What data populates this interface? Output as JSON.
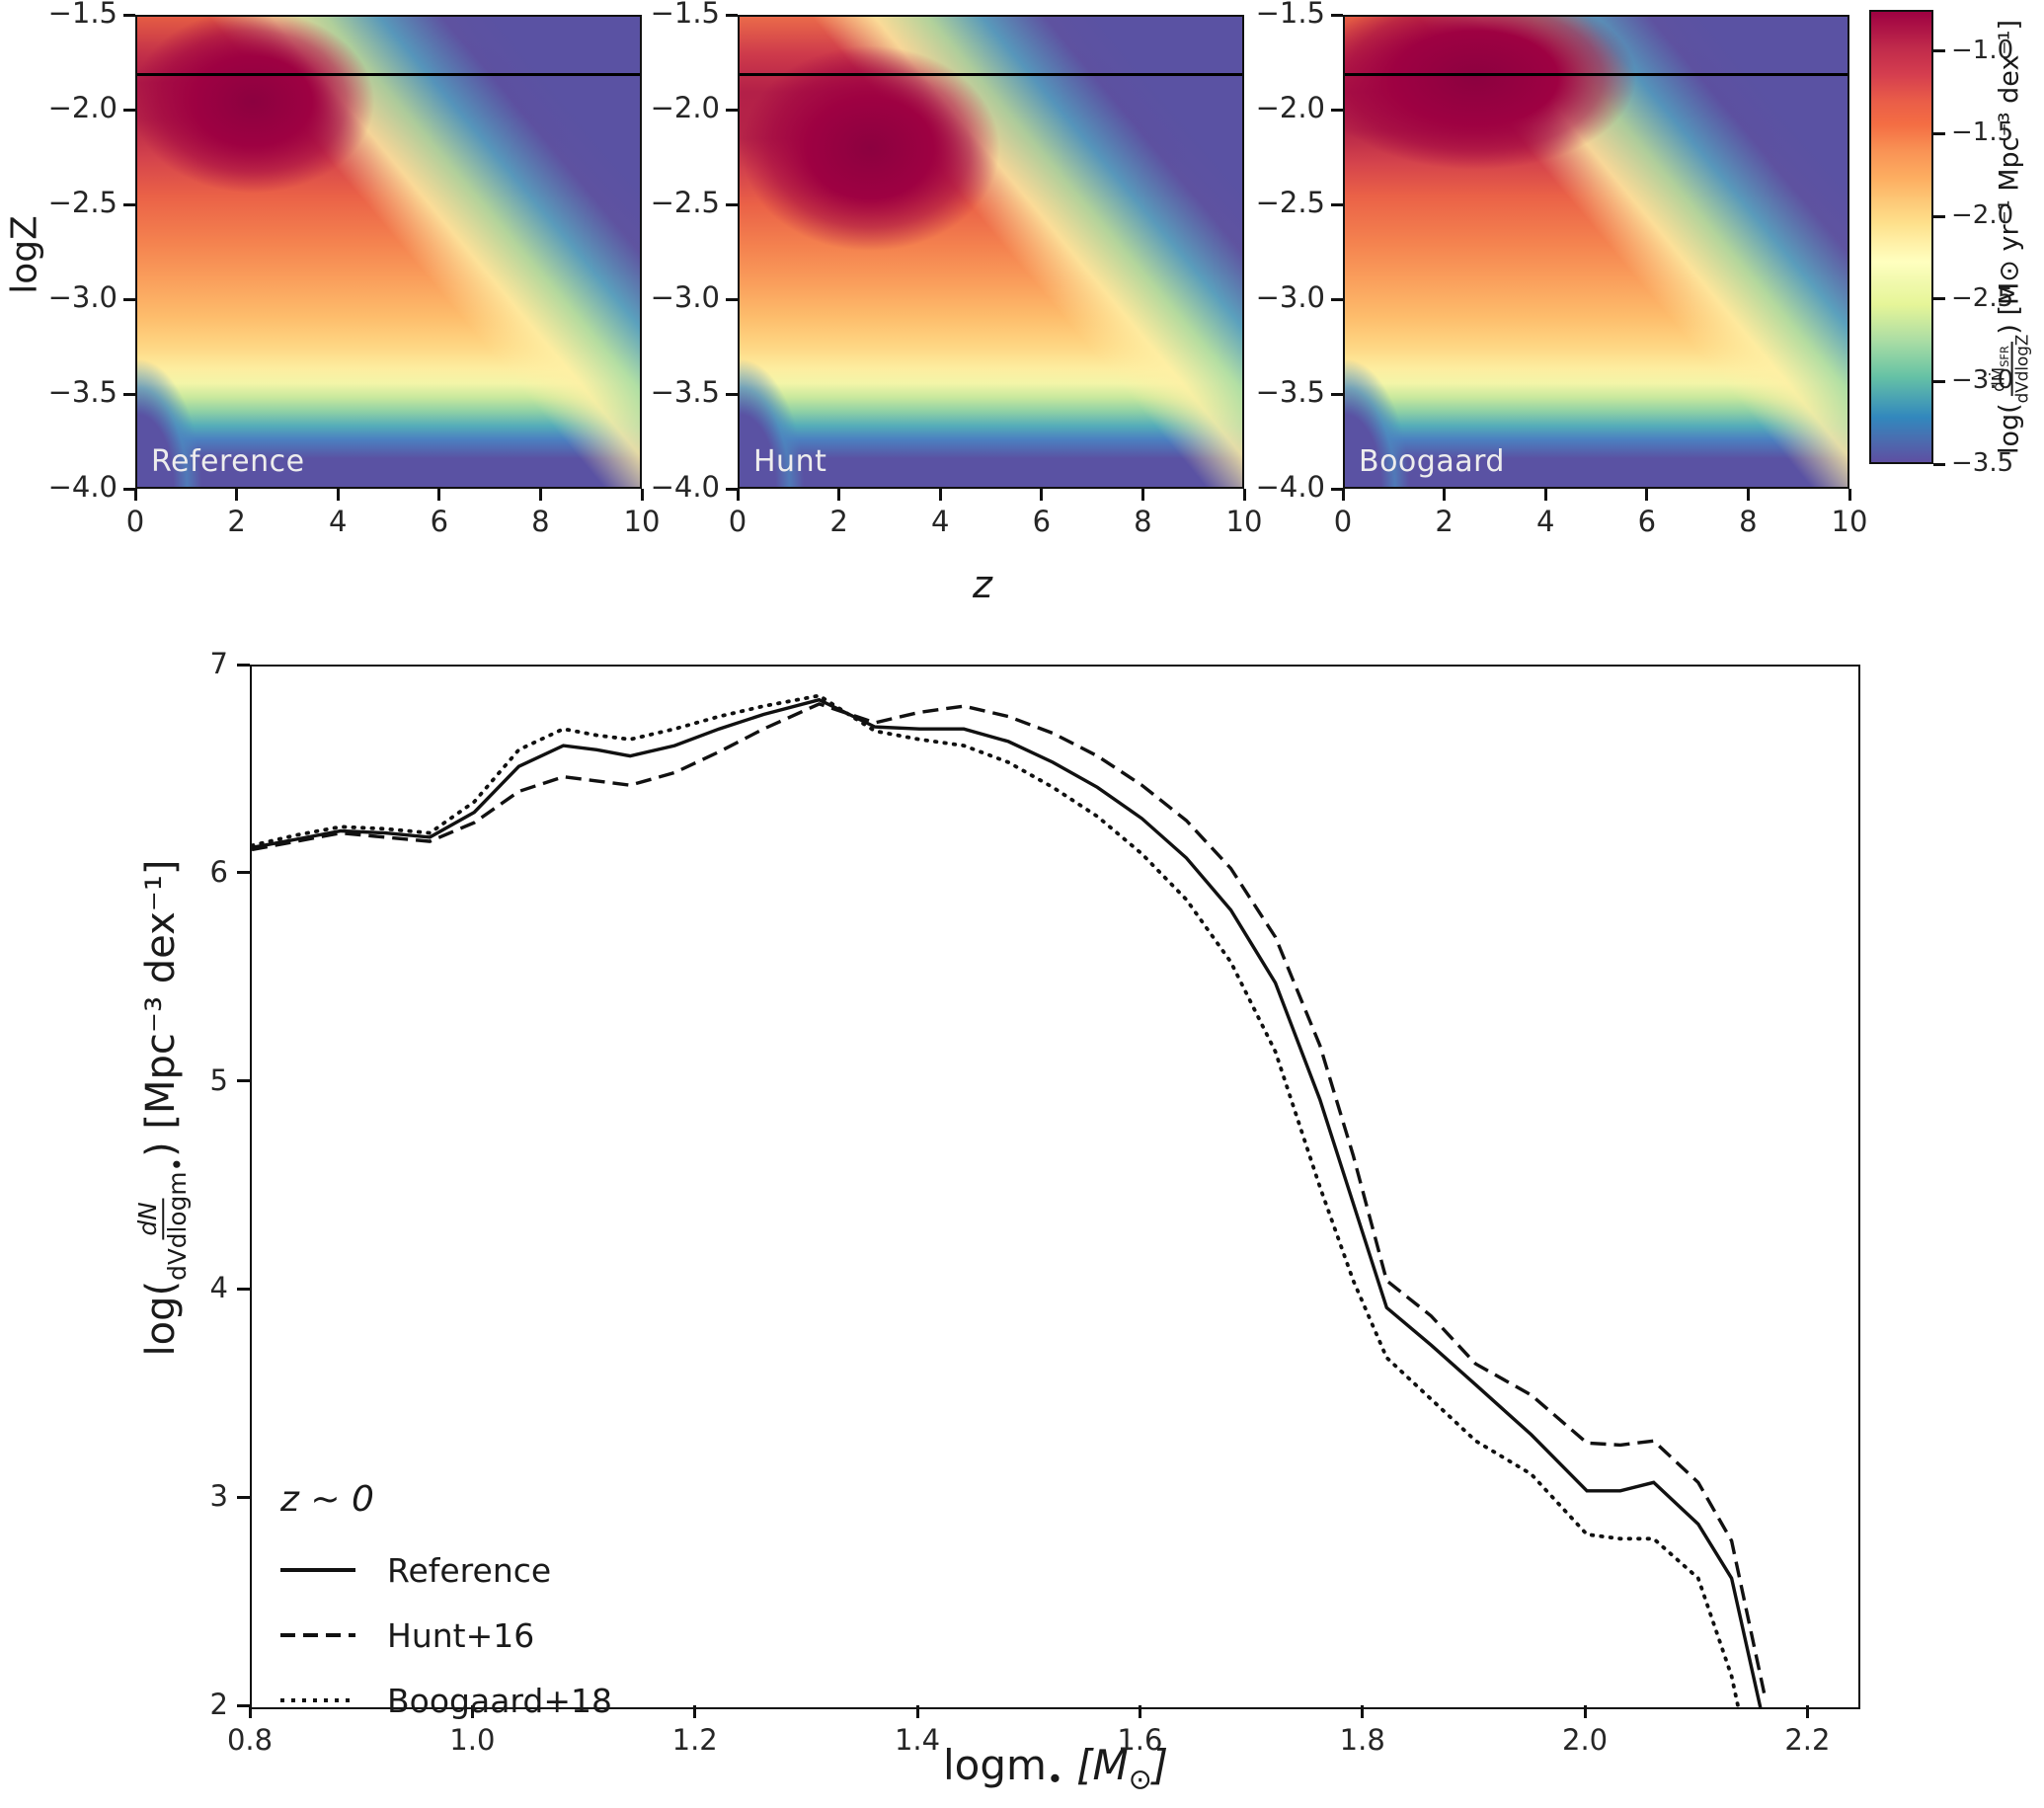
{
  "chart_data": [
    {
      "type": "heatmap",
      "description": "Three star-formation-rate density maps in the z-logZ plane sharing one colorbar",
      "panels": [
        {
          "label": "Reference",
          "peak_region": {
            "z": 2.5,
            "logZ": -2.0
          }
        },
        {
          "label": "Hunt",
          "peak_region": {
            "z": 2.7,
            "logZ": -2.3
          }
        },
        {
          "label": "Boogaard",
          "peak_region": {
            "z": 2.5,
            "logZ": -1.9
          }
        }
      ],
      "xlabel": "z",
      "ylabel": "logZ",
      "xlim": [
        0,
        10
      ],
      "ylim": [
        -4.0,
        -1.5
      ],
      "xticks": [
        {
          "v": 0,
          "label": "0"
        },
        {
          "v": 2,
          "label": "2"
        },
        {
          "v": 4,
          "label": "4"
        },
        {
          "v": 6,
          "label": "6"
        },
        {
          "v": 8,
          "label": "8"
        },
        {
          "v": 10,
          "label": "10"
        }
      ],
      "yticks": [
        {
          "v": -1.5,
          "label": "−1.5"
        },
        {
          "v": -2.0,
          "label": "−2.0"
        },
        {
          "v": -2.5,
          "label": "−2.5"
        },
        {
          "v": -3.0,
          "label": "−3.0"
        },
        {
          "v": -3.5,
          "label": "−3.5"
        },
        {
          "v": -4.0,
          "label": "−4.0"
        }
      ],
      "horizontal_line_logZ": -1.8,
      "colorbar": {
        "range_top": -0.75,
        "range_bottom": -3.5,
        "ticks": [
          {
            "v": -1.0,
            "label": "−1.0"
          },
          {
            "v": -1.5,
            "label": "−1.5"
          },
          {
            "v": -2.0,
            "label": "−2.0"
          },
          {
            "v": -2.5,
            "label": "−2.5"
          },
          {
            "v": -3.0,
            "label": "−3.0"
          },
          {
            "v": -3.5,
            "label": "−3.5"
          }
        ],
        "label": {
          "prefix": "log(",
          "num_main": "dṀ",
          "num_sub": "SFR",
          "den": "dVdlogZ",
          "suffix": ") [M⊙ yr⁻¹ Mpc⁻³ dex⁻¹]"
        },
        "colormap": "Spectral reversed",
        "colors": {
          "max": "#9e0142",
          "mid": "#ffffbf",
          "min": "#5e4fa2"
        }
      }
    },
    {
      "type": "line",
      "xlabel_parts": {
        "main": "logm",
        "sub": "•",
        "unit_pre": " [M",
        "unit_sub": "⊙",
        "unit_post": "]"
      },
      "ylabel_parts": {
        "prefix": "log(",
        "num": "dN",
        "den": "dVdlogm•",
        "suffix": ") [Mpc⁻³ dex⁻¹]"
      },
      "xlim": [
        0.8,
        2.244
      ],
      "ylim": [
        2,
        7
      ],
      "xticks": [
        {
          "v": 0.8,
          "label": "0.8"
        },
        {
          "v": 1.0,
          "label": "1.0"
        },
        {
          "v": 1.2,
          "label": "1.2"
        },
        {
          "v": 1.4,
          "label": "1.4"
        },
        {
          "v": 1.6,
          "label": "1.6"
        },
        {
          "v": 1.8,
          "label": "1.8"
        },
        {
          "v": 2.0,
          "label": "2.0"
        },
        {
          "v": 2.2,
          "label": "2.2"
        }
      ],
      "yticks": [
        {
          "v": 7,
          "label": "7"
        },
        {
          "v": 6,
          "label": "6"
        },
        {
          "v": 5,
          "label": "5"
        },
        {
          "v": 4,
          "label": "4"
        },
        {
          "v": 3,
          "label": "3"
        },
        {
          "v": 2,
          "label": "2"
        }
      ],
      "legend_title": "z ~ 0",
      "legend_position": "lower left",
      "line_color": "#111111",
      "x": [
        0.8,
        0.84,
        0.88,
        0.92,
        0.96,
        1.0,
        1.04,
        1.08,
        1.11,
        1.14,
        1.18,
        1.22,
        1.26,
        1.31,
        1.36,
        1.4,
        1.44,
        1.48,
        1.52,
        1.56,
        1.6,
        1.64,
        1.68,
        1.72,
        1.76,
        1.79,
        1.82,
        1.86,
        1.9,
        1.95,
        2.0,
        2.03,
        2.06,
        2.1,
        2.13,
        2.16
      ],
      "series": [
        {
          "name": "Reference",
          "style": "solid",
          "y": [
            6.13,
            6.17,
            6.21,
            6.2,
            6.18,
            6.3,
            6.52,
            6.62,
            6.6,
            6.57,
            6.62,
            6.7,
            6.77,
            6.84,
            6.71,
            6.7,
            6.7,
            6.64,
            6.54,
            6.42,
            6.27,
            6.08,
            5.83,
            5.48,
            4.92,
            4.42,
            3.92,
            3.74,
            3.55,
            3.31,
            3.04,
            3.04,
            3.08,
            2.88,
            2.62,
            1.9
          ]
        },
        {
          "name": "Hunt+16",
          "style": "dashed",
          "y": [
            6.12,
            6.16,
            6.2,
            6.18,
            6.16,
            6.25,
            6.4,
            6.47,
            6.45,
            6.43,
            6.49,
            6.59,
            6.7,
            6.82,
            6.73,
            6.78,
            6.81,
            6.76,
            6.68,
            6.57,
            6.43,
            6.26,
            6.03,
            5.7,
            5.18,
            4.65,
            4.05,
            3.88,
            3.65,
            3.5,
            3.27,
            3.26,
            3.28,
            3.08,
            2.8,
            2.05
          ]
        },
        {
          "name": "Boogaard+18",
          "style": "dotted",
          "y": [
            6.14,
            6.19,
            6.23,
            6.22,
            6.2,
            6.35,
            6.6,
            6.7,
            6.67,
            6.65,
            6.7,
            6.76,
            6.81,
            6.86,
            6.69,
            6.65,
            6.62,
            6.54,
            6.42,
            6.28,
            6.1,
            5.88,
            5.58,
            5.15,
            4.5,
            4.05,
            3.68,
            3.48,
            3.28,
            3.12,
            2.83,
            2.81,
            2.81,
            2.62,
            2.15,
            1.4
          ]
        }
      ]
    }
  ]
}
